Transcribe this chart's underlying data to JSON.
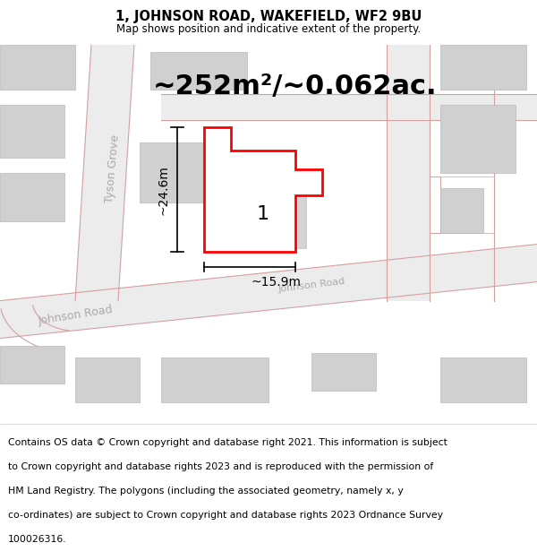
{
  "title": "1, JOHNSON ROAD, WAKEFIELD, WF2 9BU",
  "subtitle": "Map shows position and indicative extent of the property.",
  "area_label": "~252m²/~0.062ac.",
  "width_label": "~15.9m",
  "height_label": "~24.6m",
  "number_label": "1",
  "footer_lines": [
    "Contains OS data © Crown copyright and database right 2021. This information is subject",
    "to Crown copyright and database rights 2023 and is reproduced with the permission of",
    "HM Land Registry. The polygons (including the associated geometry, namely x, y",
    "co-ordinates) are subject to Crown copyright and database rights 2023 Ordnance Survey",
    "100026316."
  ],
  "bg_color": "#f0f0f0",
  "road_color": "#e8e0e0",
  "road_stroke": "#d4a0a0",
  "building_fill": "#d0d0d0",
  "building_edge": "#b8b8b8",
  "plot_fill": "#ffffff",
  "plot_stroke": "#ff0000",
  "title_fontsize": 10.5,
  "subtitle_fontsize": 8.5,
  "area_fontsize": 22,
  "dim_fontsize": 10,
  "label_color": "#cccccc",
  "footer_fontsize": 7.8,
  "road_label_color": "#aaaaaa",
  "road_label_size": 9
}
